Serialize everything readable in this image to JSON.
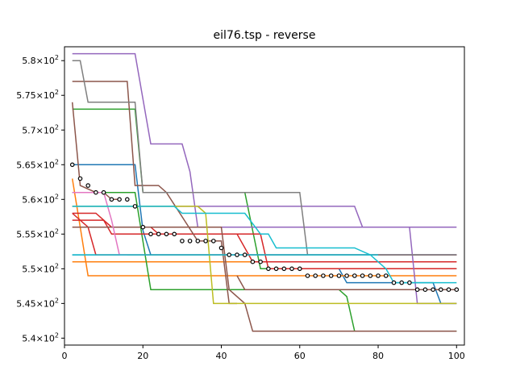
{
  "chart_data": {
    "type": "line",
    "title": "eil76.tsp - reverse",
    "xlabel": "",
    "ylabel": "",
    "xlim": [
      0,
      102
    ],
    "ylim": [
      5.39,
      5.82
    ],
    "x_ticks": [
      0,
      20,
      40,
      60,
      80,
      100
    ],
    "x_tick_labels": [
      "0",
      "20",
      "40",
      "60",
      "80",
      "100"
    ],
    "y_ticks": [
      5.4,
      5.45,
      5.5,
      5.55,
      5.6,
      5.65,
      5.7,
      5.75,
      5.8
    ],
    "y_tick_mantissas": [
      "5.4",
      "5.45",
      "5.5",
      "5.55",
      "5.6",
      "5.65",
      "5.7",
      "5.75",
      "5.8"
    ],
    "y_tick_base": "10",
    "y_tick_exponent": "2",
    "grid": false,
    "series": [
      {
        "color": "#1f77b4",
        "points": [
          [
            2,
            5.65
          ],
          [
            18,
            5.65
          ],
          [
            20,
            5.555
          ],
          [
            22,
            5.52
          ],
          [
            100,
            5.52
          ]
        ]
      },
      {
        "color": "#1f77b4",
        "points": [
          [
            2,
            5.52
          ],
          [
            100,
            5.52
          ]
        ]
      },
      {
        "color": "#1f77b4",
        "points": [
          [
            70,
            5.5
          ],
          [
            72,
            5.48
          ],
          [
            94,
            5.48
          ],
          [
            96,
            5.45
          ],
          [
            100,
            5.45
          ]
        ]
      },
      {
        "color": "#ff7f0e",
        "points": [
          [
            2,
            5.63
          ],
          [
            4,
            5.56
          ],
          [
            6,
            5.49
          ],
          [
            100,
            5.49
          ]
        ]
      },
      {
        "color": "#ff7f0e",
        "points": [
          [
            2,
            5.51
          ],
          [
            100,
            5.51
          ]
        ]
      },
      {
        "color": "#2ca02c",
        "points": [
          [
            2,
            5.73
          ],
          [
            18,
            5.73
          ],
          [
            20,
            5.61
          ],
          [
            46,
            5.61
          ],
          [
            50,
            5.5
          ],
          [
            100,
            5.5
          ]
        ]
      },
      {
        "color": "#2ca02c",
        "points": [
          [
            2,
            5.61
          ],
          [
            18,
            5.61
          ],
          [
            22,
            5.47
          ],
          [
            100,
            5.47
          ]
        ]
      },
      {
        "color": "#2ca02c",
        "points": [
          [
            50,
            5.47
          ],
          [
            70,
            5.47
          ],
          [
            72,
            5.46
          ],
          [
            74,
            5.41
          ],
          [
            100,
            5.41
          ]
        ]
      },
      {
        "color": "#d62728",
        "points": [
          [
            2,
            5.58
          ],
          [
            8,
            5.58
          ],
          [
            12,
            5.56
          ],
          [
            22,
            5.56
          ],
          [
            24,
            5.55
          ],
          [
            50,
            5.55
          ],
          [
            52,
            5.5
          ],
          [
            100,
            5.5
          ]
        ]
      },
      {
        "color": "#d62728",
        "points": [
          [
            2,
            5.57
          ],
          [
            10,
            5.57
          ],
          [
            12,
            5.55
          ],
          [
            44,
            5.55
          ],
          [
            48,
            5.51
          ],
          [
            100,
            5.51
          ]
        ]
      },
      {
        "color": "#d62728",
        "points": [
          [
            2,
            5.58
          ],
          [
            6,
            5.56
          ],
          [
            8,
            5.52
          ],
          [
            100,
            5.52
          ]
        ]
      },
      {
        "color": "#9467bd",
        "points": [
          [
            2,
            5.81
          ],
          [
            18,
            5.81
          ],
          [
            22,
            5.68
          ],
          [
            30,
            5.68
          ],
          [
            32,
            5.64
          ],
          [
            34,
            5.56
          ],
          [
            100,
            5.56
          ]
        ]
      },
      {
        "color": "#9467bd",
        "points": [
          [
            2,
            5.59
          ],
          [
            74,
            5.59
          ],
          [
            76,
            5.56
          ],
          [
            88,
            5.56
          ],
          [
            90,
            5.45
          ],
          [
            100,
            5.45
          ]
        ]
      },
      {
        "color": "#8c564b",
        "points": [
          [
            2,
            5.74
          ],
          [
            4,
            5.62
          ],
          [
            8,
            5.61
          ],
          [
            10,
            5.61
          ],
          [
            12,
            5.6
          ],
          [
            14,
            5.6
          ]
        ]
      },
      {
        "color": "#8c564b",
        "points": [
          [
            2,
            5.77
          ],
          [
            16,
            5.77
          ],
          [
            18,
            5.62
          ],
          [
            24,
            5.62
          ],
          [
            26,
            5.61
          ],
          [
            34,
            5.54
          ],
          [
            40,
            5.54
          ],
          [
            42,
            5.45
          ],
          [
            44,
            5.45
          ]
        ]
      },
      {
        "color": "#8c564b",
        "points": [
          [
            44,
            5.49
          ],
          [
            46,
            5.47
          ],
          [
            100,
            5.47
          ]
        ]
      },
      {
        "color": "#8c564b",
        "points": [
          [
            2,
            5.56
          ],
          [
            40,
            5.56
          ],
          [
            42,
            5.47
          ],
          [
            46,
            5.45
          ],
          [
            48,
            5.41
          ],
          [
            100,
            5.41
          ]
        ]
      },
      {
        "color": "#e377c2",
        "points": [
          [
            2,
            5.61
          ],
          [
            10,
            5.61
          ],
          [
            12,
            5.57
          ],
          [
            14,
            5.52
          ],
          [
            16,
            5.52
          ]
        ]
      },
      {
        "color": "#7f7f7f",
        "points": [
          [
            2,
            5.8
          ],
          [
            4,
            5.8
          ],
          [
            6,
            5.74
          ],
          [
            18,
            5.74
          ],
          [
            20,
            5.61
          ],
          [
            60,
            5.61
          ],
          [
            62,
            5.52
          ],
          [
            100,
            5.52
          ]
        ]
      },
      {
        "color": "#bcbd22",
        "points": [
          [
            2,
            5.59
          ],
          [
            34,
            5.59
          ],
          [
            36,
            5.58
          ],
          [
            38,
            5.45
          ],
          [
            100,
            5.45
          ]
        ]
      },
      {
        "color": "#17becf",
        "points": [
          [
            2,
            5.59
          ],
          [
            28,
            5.59
          ],
          [
            30,
            5.58
          ],
          [
            46,
            5.58
          ],
          [
            50,
            5.55
          ],
          [
            52,
            5.55
          ],
          [
            54,
            5.53
          ],
          [
            74,
            5.53
          ],
          [
            78,
            5.52
          ],
          [
            82,
            5.5
          ],
          [
            84,
            5.48
          ],
          [
            100,
            5.48
          ]
        ]
      },
      {
        "color": "#17becf",
        "points": [
          [
            2,
            5.52
          ],
          [
            80,
            5.52
          ]
        ]
      }
    ],
    "mean_series": {
      "marker": "open-circle",
      "points": [
        [
          2,
          5.65
        ],
        [
          4,
          5.63
        ],
        [
          6,
          5.62
        ],
        [
          8,
          5.61
        ],
        [
          10,
          5.61
        ],
        [
          12,
          5.6
        ],
        [
          14,
          5.6
        ],
        [
          16,
          5.6
        ],
        [
          18,
          5.59
        ],
        [
          20,
          5.56
        ],
        [
          22,
          5.55
        ],
        [
          24,
          5.55
        ],
        [
          26,
          5.55
        ],
        [
          28,
          5.55
        ],
        [
          30,
          5.54
        ],
        [
          32,
          5.54
        ],
        [
          34,
          5.54
        ],
        [
          36,
          5.54
        ],
        [
          38,
          5.54
        ],
        [
          40,
          5.53
        ],
        [
          42,
          5.52
        ],
        [
          44,
          5.52
        ],
        [
          46,
          5.52
        ],
        [
          48,
          5.51
        ],
        [
          50,
          5.51
        ],
        [
          52,
          5.5
        ],
        [
          54,
          5.5
        ],
        [
          56,
          5.5
        ],
        [
          58,
          5.5
        ],
        [
          60,
          5.5
        ],
        [
          62,
          5.49
        ],
        [
          64,
          5.49
        ],
        [
          66,
          5.49
        ],
        [
          68,
          5.49
        ],
        [
          70,
          5.49
        ],
        [
          72,
          5.49
        ],
        [
          74,
          5.49
        ],
        [
          76,
          5.49
        ],
        [
          78,
          5.49
        ],
        [
          80,
          5.49
        ],
        [
          82,
          5.49
        ],
        [
          84,
          5.48
        ],
        [
          86,
          5.48
        ],
        [
          88,
          5.48
        ],
        [
          90,
          5.47
        ],
        [
          92,
          5.47
        ],
        [
          94,
          5.47
        ],
        [
          96,
          5.47
        ],
        [
          98,
          5.47
        ],
        [
          100,
          5.47
        ]
      ]
    }
  }
}
